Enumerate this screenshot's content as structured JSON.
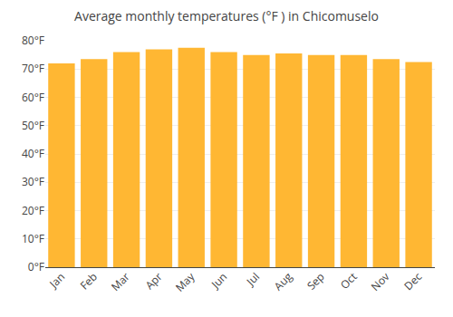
{
  "chart_data": {
    "type": "bar",
    "title": "Average monthly temperatures (°F ) in Chicomuselo",
    "categories": [
      "Jan",
      "Feb",
      "Mar",
      "Apr",
      "May",
      "Jun",
      "Jul",
      "Aug",
      "Sep",
      "Oct",
      "Nov",
      "Dec"
    ],
    "values": [
      72.0,
      73.5,
      76.0,
      77.0,
      77.5,
      76.0,
      75.0,
      75.5,
      75.0,
      75.0,
      73.5,
      72.5
    ],
    "color": "#FFB733",
    "ylim": [
      0,
      80
    ],
    "yticks": [
      {
        "value": 0,
        "label": "0°F"
      },
      {
        "value": 10,
        "label": "10°F"
      },
      {
        "value": 20,
        "label": "20°F"
      },
      {
        "value": 30,
        "label": "30°F"
      },
      {
        "value": 40,
        "label": "40°F"
      },
      {
        "value": 50,
        "label": "50°F"
      },
      {
        "value": 60,
        "label": "60°F"
      },
      {
        "value": 70,
        "label": "70°F"
      },
      {
        "value": 80,
        "label": "80°F"
      }
    ],
    "grid": true
  }
}
